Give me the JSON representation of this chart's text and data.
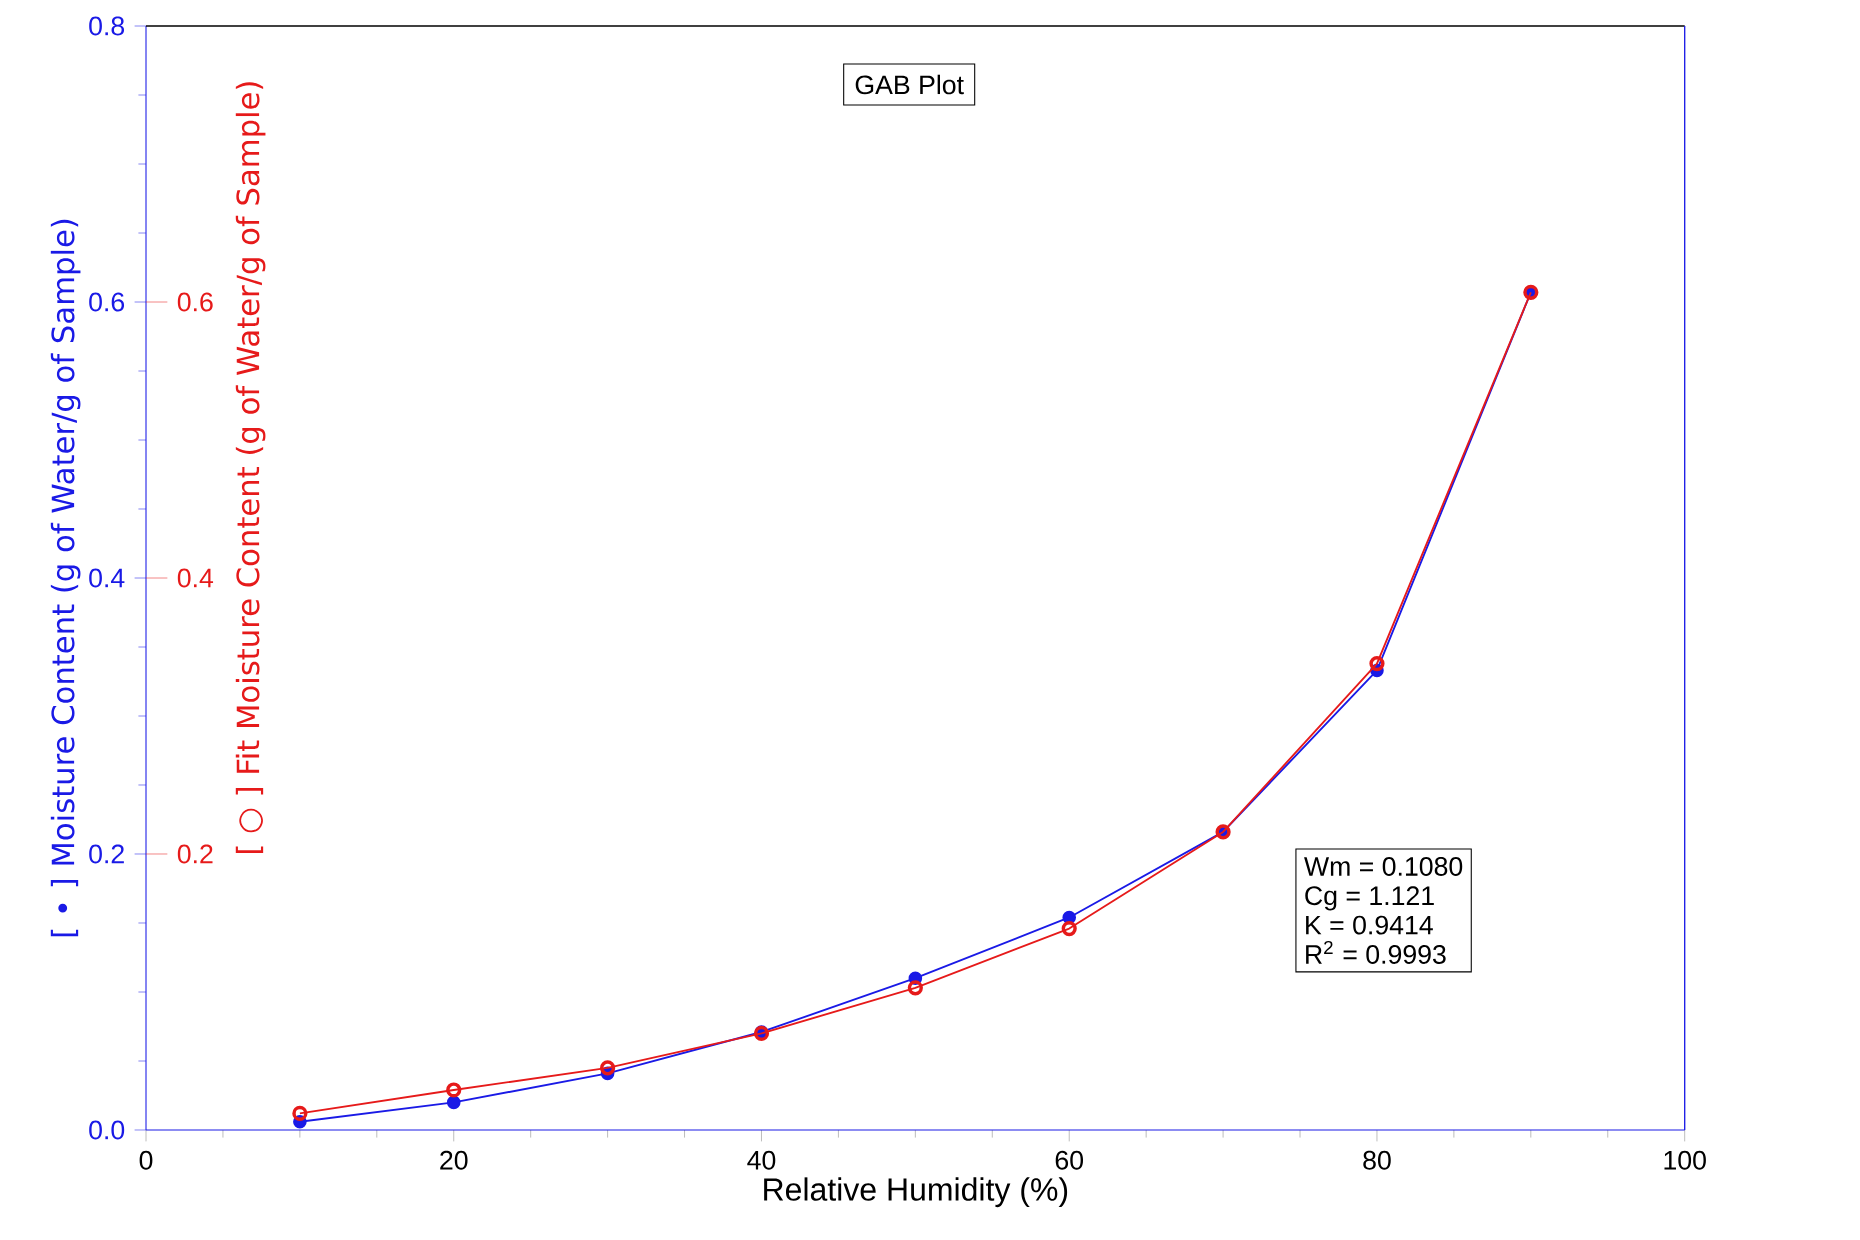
{
  "chart_data": {
    "type": "line",
    "title": "GAB Plot",
    "xlabel": "Relative Humidity (%)",
    "ylabel": "[ • ] Moisture Content (g of Water/g of Sample)",
    "y2label": "[ ○ ] Fit Moisture Content (g of Water/g of Sample)",
    "x": [
      10,
      20,
      30,
      40,
      50,
      60,
      70,
      80,
      90
    ],
    "series": [
      {
        "color": "#1a1ae6",
        "marker": "circle",
        "values": [
          0.006,
          0.02,
          0.041,
          0.071,
          0.11,
          0.154,
          0.216,
          0.333,
          0.607
        ]
      },
      {
        "color": "#e61a1a",
        "marker": "open circle",
        "axis": "y2",
        "values": [
          0.012,
          0.029,
          0.045,
          0.07,
          0.103,
          0.146,
          0.216,
          0.338,
          0.607
        ]
      }
    ],
    "xlim": [
      0,
      100
    ],
    "xticks": [
      0,
      20,
      40,
      60,
      80,
      100
    ],
    "ylim": [
      0,
      0.8
    ],
    "yticks": [
      {
        "value": 0,
        "label": "0.0"
      },
      0.2,
      0.4,
      0.6,
      0.8
    ],
    "y2lim": [
      0,
      0.8
    ],
    "y2ticks": [
      0.2,
      0.4,
      0.6
    ],
    "annotations": [
      "Wm = 0.1080",
      "Cg = 1.121",
      "K = 0.9414",
      "R$^{2}$ = 0.9993"
    ],
    "grid": false
  }
}
